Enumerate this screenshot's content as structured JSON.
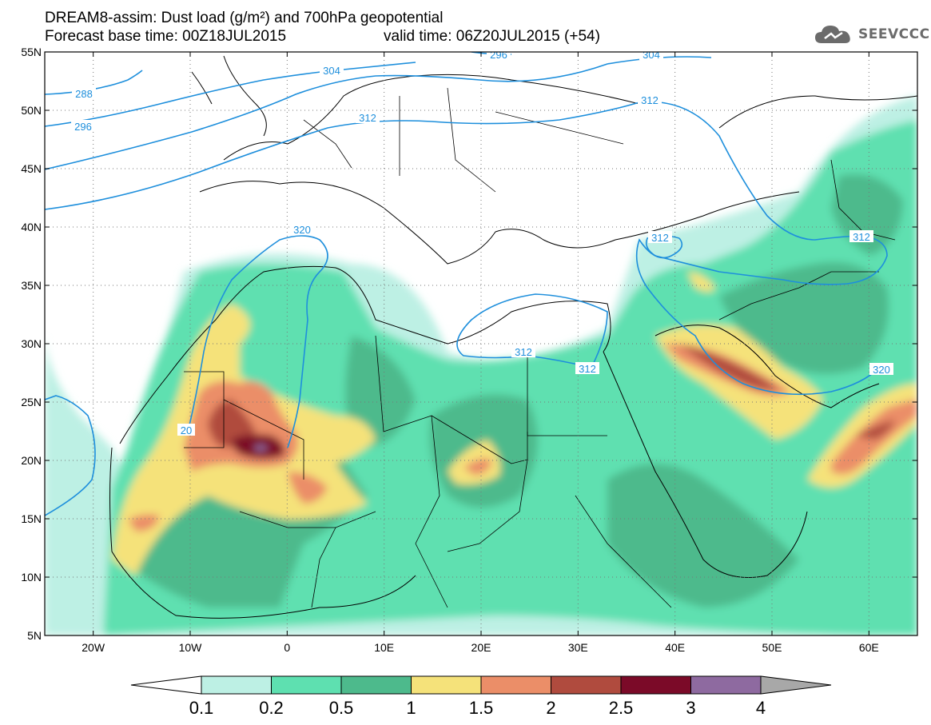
{
  "title": {
    "line1": "DREAM8-assim: Dust load (g/m²) and 700hPa geopotential",
    "line2a": "Forecast base time: 00Z18JUL2015",
    "line2b": "valid time: 06Z20JUL2015 (+54)"
  },
  "logo": {
    "text": "SEEVCCC",
    "icon": "cloud-logo-icon",
    "color": "#6b6b6b"
  },
  "axes": {
    "lat_ticks": [
      "55N",
      "50N",
      "45N",
      "40N",
      "35N",
      "30N",
      "25N",
      "20N",
      "15N",
      "10N",
      "5N"
    ],
    "lat_values": [
      55,
      50,
      45,
      40,
      35,
      30,
      25,
      20,
      15,
      10,
      5
    ],
    "lon_ticks": [
      "20W",
      "10W",
      "0",
      "10E",
      "20E",
      "30E",
      "40E",
      "50E",
      "60E"
    ],
    "lon_values": [
      -20,
      -10,
      0,
      10,
      20,
      30,
      40,
      50,
      60
    ],
    "lon_range": [
      -25,
      65
    ],
    "lat_range": [
      5,
      55
    ],
    "grid": "dotted"
  },
  "contours": {
    "color": "#1e8fdc",
    "labels": [
      "288",
      "296",
      "296",
      "304",
      "304",
      "312",
      "312",
      "312",
      "312",
      "312",
      "312",
      "320",
      "320",
      "20"
    ]
  },
  "colorbar": {
    "labels": [
      "0.1",
      "0.2",
      "0.5",
      "1",
      "1.5",
      "2",
      "2.5",
      "3",
      "4"
    ],
    "colors": [
      "#bdf0e4",
      "#5ee0b0",
      "#4dba8c",
      "#f5e27a",
      "#eb8e68",
      "#b04b3e",
      "#7b0a28",
      "#8e6aa0",
      "#a8a8a8"
    ]
  }
}
